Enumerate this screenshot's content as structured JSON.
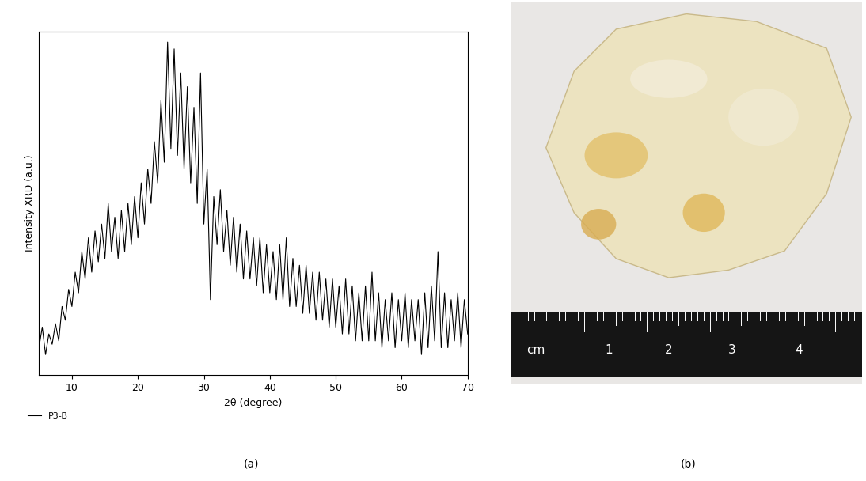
{
  "chart_data": {
    "type": "line",
    "xlabel": "2θ (degree)",
    "ylabel": "Intensity XRD (a.u.)",
    "panel_label": "(a)",
    "x": [
      5,
      5.5,
      6,
      6.5,
      7,
      7.5,
      8,
      8.5,
      9,
      9.5,
      10,
      10.5,
      11,
      11.5,
      12,
      12.5,
      13,
      13.5,
      14,
      14.5,
      15,
      15.5,
      16,
      16.5,
      17,
      17.5,
      18,
      18.5,
      19,
      19.5,
      20,
      20.5,
      21,
      21.5,
      22,
      22.5,
      23,
      23.5,
      24,
      24.5,
      25,
      25.5,
      26,
      26.5,
      27,
      27.5,
      28,
      28.5,
      29,
      29.5,
      30,
      30.5,
      31,
      31.5,
      32,
      32.5,
      33,
      33.5,
      34,
      34.5,
      35,
      35.5,
      36,
      36.5,
      37,
      37.5,
      38,
      38.5,
      39,
      39.5,
      40,
      40.5,
      41,
      41.5,
      42,
      42.5,
      43,
      43.5,
      44,
      44.5,
      45,
      45.5,
      46,
      46.5,
      47,
      47.5,
      48,
      48.5,
      49,
      49.5,
      50,
      50.5,
      51,
      51.5,
      52,
      52.5,
      53,
      53.5,
      54,
      54.5,
      55,
      55.5,
      56,
      56.5,
      57,
      57.5,
      58,
      58.5,
      59,
      59.5,
      60,
      60.5,
      61,
      61.5,
      62,
      62.5,
      63,
      63.5,
      64,
      64.5,
      65,
      65.5,
      66,
      66.5,
      67,
      67.5,
      68,
      68.5,
      69,
      69.5,
      70
    ],
    "series": [
      {
        "name": "P3-B",
        "color": "#000000",
        "line_style": "solid",
        "values": [
          8,
          14,
          6,
          12,
          9,
          15,
          10,
          20,
          16,
          25,
          20,
          30,
          24,
          36,
          28,
          40,
          30,
          42,
          33,
          44,
          34,
          50,
          36,
          46,
          34,
          48,
          36,
          50,
          38,
          52,
          40,
          56,
          44,
          60,
          50,
          68,
          56,
          80,
          62,
          97,
          66,
          95,
          64,
          88,
          60,
          84,
          56,
          78,
          50,
          88,
          44,
          60,
          22,
          52,
          38,
          54,
          36,
          48,
          32,
          46,
          30,
          44,
          28,
          42,
          28,
          40,
          26,
          40,
          24,
          38,
          24,
          36,
          22,
          38,
          22,
          40,
          20,
          34,
          20,
          32,
          18,
          32,
          18,
          30,
          16,
          30,
          16,
          28,
          14,
          28,
          14,
          26,
          12,
          28,
          12,
          26,
          10,
          24,
          10,
          26,
          10,
          30,
          10,
          24,
          8,
          22,
          10,
          24,
          8,
          22,
          10,
          24,
          8,
          22,
          10,
          22,
          6,
          24,
          8,
          26,
          10,
          36,
          8,
          24,
          8,
          22,
          10,
          24,
          8,
          22,
          12
        ]
      }
    ],
    "xlim": [
      5,
      70
    ],
    "xticks": [
      10,
      20,
      30,
      40,
      50,
      60,
      70
    ],
    "ylim": [
      0,
      100
    ],
    "yticks": [],
    "tick_labels": "x",
    "legend": "upper left",
    "grid": false
  },
  "photo": {
    "panel_label": "(b)",
    "ruler_labels": [
      "cm",
      "1",
      "2",
      "3",
      "4"
    ]
  }
}
